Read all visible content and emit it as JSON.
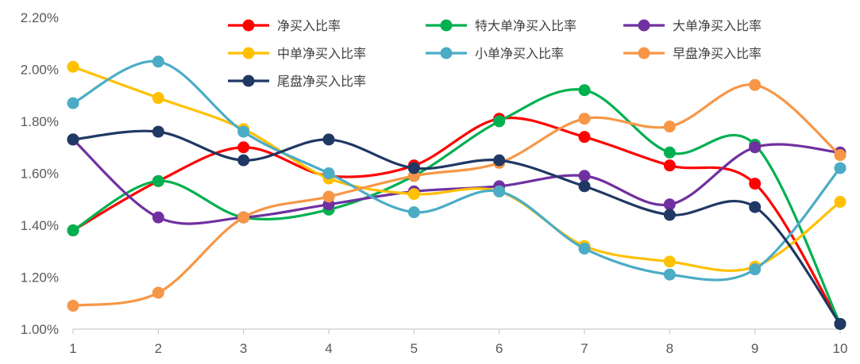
{
  "chart_data": {
    "type": "line",
    "smooth": true,
    "x": [
      "1",
      "2",
      "3",
      "4",
      "5",
      "6",
      "7",
      "8",
      "9",
      "10"
    ],
    "ylim": [
      1.0,
      2.2
    ],
    "yticks": [
      "1.00%",
      "1.20%",
      "1.40%",
      "1.60%",
      "1.80%",
      "2.00%",
      "2.20%"
    ],
    "grid": false,
    "legend_position": "top",
    "series": [
      {
        "name": "净买入比率",
        "color": "#FF0000",
        "values": [
          1.38,
          1.57,
          1.7,
          1.59,
          1.63,
          1.81,
          1.74,
          1.63,
          1.56,
          1.02
        ]
      },
      {
        "name": "特大单净买入比率",
        "color": "#00B050",
        "values": [
          1.38,
          1.57,
          1.43,
          1.46,
          1.59,
          1.8,
          1.92,
          1.68,
          1.71,
          1.02
        ]
      },
      {
        "name": "大单净买入比率",
        "color": "#7030A0",
        "values": [
          1.73,
          1.43,
          1.43,
          1.48,
          1.53,
          1.55,
          1.59,
          1.48,
          1.7,
          1.68
        ]
      },
      {
        "name": "中单净买入比率",
        "color": "#FFC000",
        "values": [
          2.01,
          1.89,
          1.77,
          1.58,
          1.52,
          1.53,
          1.32,
          1.26,
          1.24,
          1.49
        ]
      },
      {
        "name": "小单净买入比率",
        "color": "#4BACC6",
        "values": [
          1.87,
          2.03,
          1.76,
          1.6,
          1.45,
          1.53,
          1.31,
          1.21,
          1.23,
          1.62
        ]
      },
      {
        "name": "早盘净买入比率",
        "color": "#F79646",
        "values": [
          1.09,
          1.14,
          1.43,
          1.51,
          1.59,
          1.64,
          1.81,
          1.78,
          1.94,
          1.67
        ]
      },
      {
        "name": "尾盘净买入比率",
        "color": "#1F3864",
        "values": [
          1.73,
          1.76,
          1.65,
          1.73,
          1.62,
          1.65,
          1.55,
          1.44,
          1.47,
          1.02
        ]
      }
    ]
  }
}
